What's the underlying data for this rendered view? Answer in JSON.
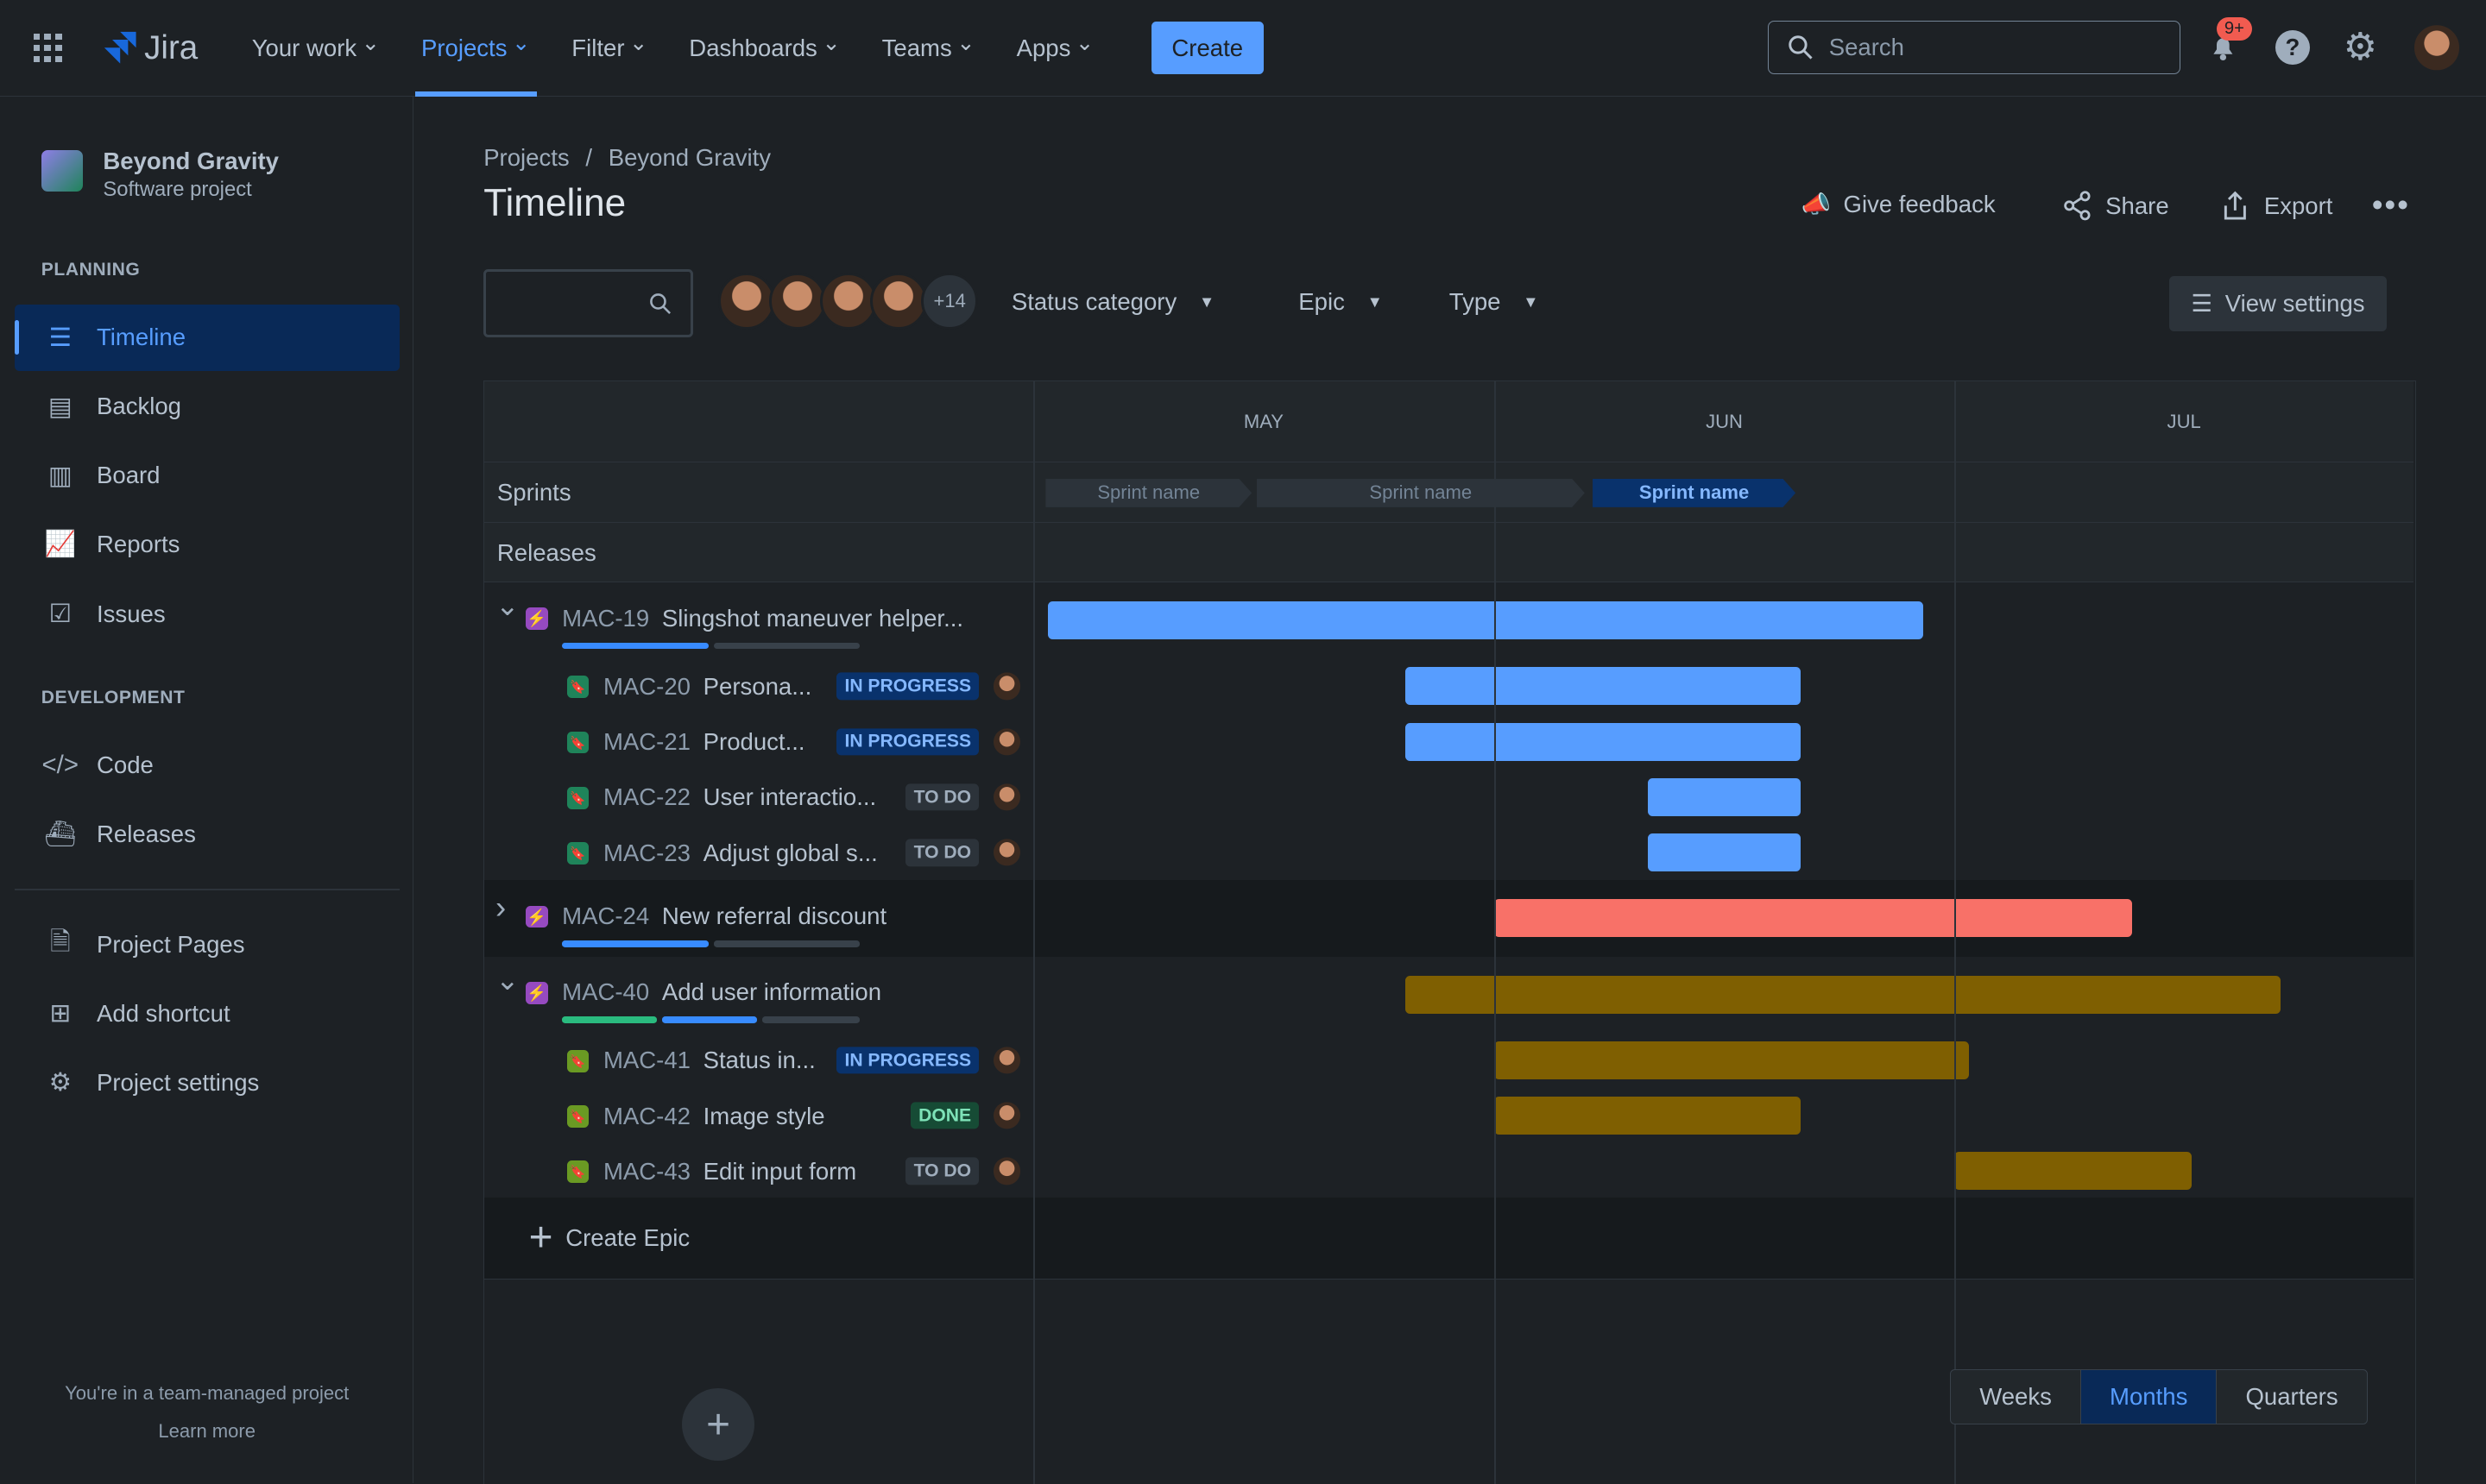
{
  "topbar": {
    "app": "Jira",
    "nav": [
      {
        "label": "Your work"
      },
      {
        "label": "Projects",
        "active": true
      },
      {
        "label": "Filter"
      },
      {
        "label": "Dashboards"
      },
      {
        "label": "Teams"
      },
      {
        "label": "Apps"
      }
    ],
    "create": "Create",
    "search_placeholder": "Search",
    "notifications": "9+"
  },
  "sidebar": {
    "project_name": "Beyond Gravity",
    "project_type": "Software project",
    "planning": "PLANNING",
    "development": "DEVELOPMENT",
    "planning_items": [
      {
        "label": "Timeline",
        "icon": "timeline-icon",
        "active": true
      },
      {
        "label": "Backlog",
        "icon": "backlog-icon"
      },
      {
        "label": "Board",
        "icon": "board-icon"
      },
      {
        "label": "Reports",
        "icon": "reports-icon"
      },
      {
        "label": "Issues",
        "icon": "issues-icon"
      }
    ],
    "dev_items": [
      {
        "label": "Code",
        "icon": "code-icon"
      },
      {
        "label": "Releases",
        "icon": "releases-icon"
      }
    ],
    "other_items": [
      {
        "label": "Project Pages",
        "icon": "page-icon"
      },
      {
        "label": "Add shortcut",
        "icon": "add-shortcut-icon"
      },
      {
        "label": "Project settings",
        "icon": "gear-icon"
      }
    ],
    "footer": "You're in a team-managed project",
    "learn_more": "Learn more"
  },
  "header": {
    "breadcrumb": [
      "Projects",
      "Beyond Gravity"
    ],
    "title": "Timeline",
    "give_feedback": "Give feedback",
    "share": "Share",
    "export": "Export"
  },
  "filters": {
    "avatars_more": "+14",
    "status_category": "Status category",
    "epic": "Epic",
    "type": "Type",
    "view_settings": "View settings"
  },
  "timeline": {
    "months": [
      "MAY",
      "JUN",
      "JUL"
    ],
    "sprints_label": "Sprints",
    "releases_label": "Releases",
    "sprints": [
      {
        "name": "Sprint name",
        "state": "past"
      },
      {
        "name": "Sprint name",
        "state": "past"
      },
      {
        "name": "Sprint name",
        "state": "active"
      }
    ],
    "colors": {
      "blue": "#579dff",
      "red": "#f87168",
      "gold": "#7f5f01"
    },
    "rows": [
      {
        "key": "MAC-19",
        "title": "Slingshot maneuver helper...",
        "epic": true,
        "expanded": true,
        "color": "blue",
        "start": "2024-05-02",
        "end": "2024-06-28",
        "progress": {
          "done": 0,
          "in_progress": 0.5
        }
      },
      {
        "key": "MAC-20",
        "title": "Persona...",
        "status": "IN PROGRESS",
        "start": "2024-05-26",
        "end": "2024-06-20",
        "color": "blue"
      },
      {
        "key": "MAC-21",
        "title": "Product...",
        "status": "IN PROGRESS",
        "start": "2024-05-26",
        "end": "2024-06-20",
        "color": "blue"
      },
      {
        "key": "MAC-22",
        "title": "User interactio...",
        "status": "TO DO",
        "start": "2024-06-11",
        "end": "2024-06-20",
        "color": "blue"
      },
      {
        "key": "MAC-23",
        "title": "Adjust global s...",
        "status": "TO DO",
        "start": "2024-06-11",
        "end": "2024-06-20",
        "color": "blue"
      },
      {
        "key": "MAC-24",
        "title": "New referral discount",
        "epic": true,
        "expanded": false,
        "color": "red",
        "start": "2024-06-01",
        "end": "2024-07-12",
        "progress": {
          "done": 0,
          "in_progress": 0.5
        }
      },
      {
        "key": "MAC-40",
        "title": "Add user information",
        "epic": true,
        "expanded": true,
        "color": "gold",
        "start": "2024-05-26",
        "end": "2024-07-22",
        "progress": {
          "done": 0.33,
          "in_progress": 0.33
        }
      },
      {
        "key": "MAC-41",
        "title": "Status in...",
        "status": "IN PROGRESS",
        "start": "2024-06-01",
        "end": "2024-07-01",
        "color": "gold"
      },
      {
        "key": "MAC-42",
        "title": "Image style",
        "status": "DONE",
        "start": "2024-06-01",
        "end": "2024-06-20",
        "color": "gold"
      },
      {
        "key": "MAC-43",
        "title": "Edit input form",
        "status": "TO DO",
        "start": "2024-07-01",
        "end": "2024-07-16",
        "color": "gold"
      }
    ],
    "create_epic": "Create Epic"
  },
  "zoom": {
    "options": [
      "Weeks",
      "Months",
      "Quarters"
    ],
    "selected": "Months"
  }
}
